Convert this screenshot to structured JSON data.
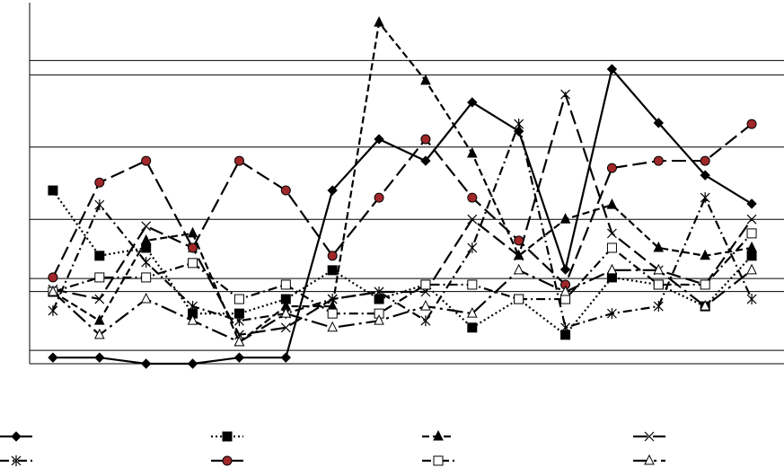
{
  "chart_data": {
    "type": "line",
    "categories": [
      null,
      null,
      null,
      null,
      null,
      null,
      null,
      null,
      null,
      null,
      null,
      null,
      null,
      null,
      null,
      null
    ],
    "ylim": [
      0,
      100
    ],
    "yticks": [
      3.7,
      20,
      23.6,
      40,
      60,
      80,
      84
    ],
    "grid": true,
    "legend": "bottom",
    "series": [
      {
        "color": "#000000",
        "marker": "diamond",
        "dash": "solid",
        "values": [
          1.7,
          1.7,
          0,
          0,
          1.7,
          1.7,
          48,
          62.2,
          56.2,
          72.4,
          64.4,
          26.1,
          81.6,
          66.7,
          52.2,
          44.3
        ]
      },
      {
        "color": "#000000",
        "marker": "square",
        "dash": "dotted",
        "values": [
          48,
          29.9,
          32.1,
          13.9,
          13.9,
          17.9,
          25.9,
          17.9,
          21.9,
          10,
          17.9,
          8,
          23.9,
          21.9,
          15.9,
          29.9
        ]
      },
      {
        "color": "#000000",
        "marker": "triangle",
        "dash": "dashed",
        "values": [
          19.9,
          11.9,
          34.1,
          36.1,
          6,
          15.9,
          15.9,
          94.5,
          78.4,
          58.2,
          29.9,
          40,
          44,
          32.1,
          29.9,
          32.1
        ]
      },
      {
        "color": "#000000",
        "marker": "x",
        "dash": "longdash",
        "values": [
          20.6,
          17.9,
          38.1,
          32.1,
          8,
          10,
          17.9,
          19.9,
          19.9,
          40,
          29.9,
          74.6,
          36.1,
          25.9,
          21.9,
          40
        ]
      },
      {
        "color": "#000000",
        "marker": "asterisk",
        "dash": "dashdot",
        "values": [
          14.7,
          44,
          28.1,
          15.9,
          11.9,
          13.9,
          17.9,
          19.9,
          11.9,
          32.1,
          66.4,
          10,
          13.9,
          15.9,
          46,
          17.9
        ]
      },
      {
        "color": "#000000",
        "marker": "circle",
        "marker_fill": "#a0282a",
        "dash": "longdash",
        "values": [
          23.9,
          50.2,
          56.2,
          32.1,
          56.2,
          48,
          29.9,
          46,
          62.2,
          46,
          34.1,
          21.9,
          54.2,
          56.2,
          56.2,
          66.4
        ]
      },
      {
        "color": "#000000",
        "marker": "square-open",
        "dash": "dashdot",
        "values": [
          19.9,
          23.9,
          23.9,
          27.9,
          17.9,
          21.9,
          13.9,
          13.9,
          21.9,
          21.9,
          17.9,
          17.9,
          32.1,
          21.9,
          21.9,
          36.1
        ]
      },
      {
        "color": "#000000",
        "marker": "triangle-open",
        "dash": "longdashdot",
        "values": [
          19.9,
          8,
          17.9,
          11.9,
          6,
          13.9,
          10,
          11.9,
          15.9,
          13.9,
          25.9,
          19.9,
          25.9,
          25.9,
          15.9,
          25.9
        ]
      }
    ]
  }
}
